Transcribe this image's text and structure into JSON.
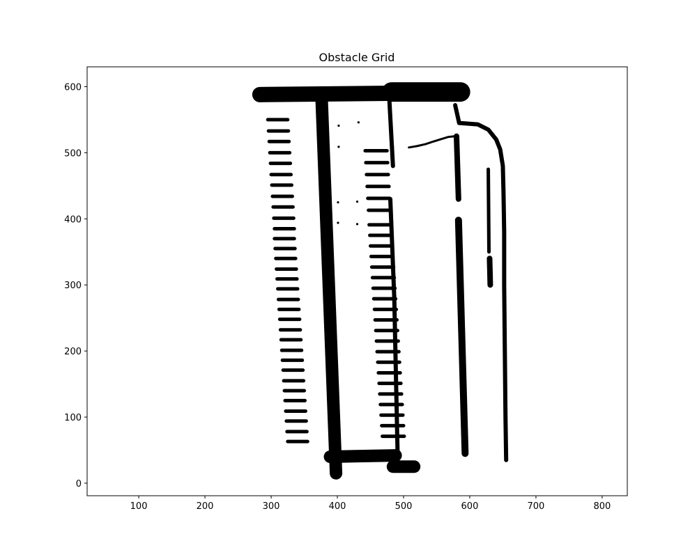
{
  "chart_data": {
    "type": "scatter",
    "title": "Obstacle Grid",
    "xlabel": "",
    "ylabel": "",
    "xlim": [
      22,
      838
    ],
    "ylim": [
      -19,
      630
    ],
    "x_ticks": [
      100,
      200,
      300,
      400,
      500,
      600,
      700,
      800
    ],
    "y_ticks": [
      0,
      100,
      200,
      300,
      400,
      500,
      600
    ],
    "x_tick_labels": [
      "100",
      "200",
      "300",
      "400",
      "500",
      "600",
      "700",
      "800"
    ],
    "y_tick_labels": [
      "0",
      "100",
      "200",
      "300",
      "400",
      "500",
      "600"
    ],
    "grid": false,
    "marker_color": "#000000",
    "series": [
      {
        "values": [
          {
            "kind": "line",
            "points": [
              [
                283,
                588
              ],
              [
                477,
                590
              ]
            ],
            "width": 22
          },
          {
            "kind": "line",
            "points": [
              [
                482,
                592
              ],
              [
                586,
                592
              ]
            ],
            "width": 28
          },
          {
            "kind": "line",
            "points": [
              [
                376,
                588
              ],
              [
                398,
                15
              ]
            ],
            "width": 18
          },
          {
            "kind": "line",
            "points": [
              [
                389,
                40
              ],
              [
                488,
                42
              ]
            ],
            "width": 18
          },
          {
            "kind": "line",
            "points": [
              [
                484,
                25
              ],
              [
                516,
                25
              ]
            ],
            "width": 18
          },
          {
            "kind": "line",
            "points": [
              [
                478,
                590
              ],
              [
                484,
                480
              ]
            ],
            "width": 6
          },
          {
            "kind": "line",
            "points": [
              [
                480,
                430
              ],
              [
                486,
                280
              ]
            ],
            "width": 6
          },
          {
            "kind": "line",
            "points": [
              [
                486,
                280
              ],
              [
                491,
                45
              ]
            ],
            "width": 6
          },
          {
            "kind": "line",
            "points": [
              [
                580,
                525
              ],
              [
                583,
                430
              ]
            ],
            "width": 8
          },
          {
            "kind": "line",
            "points": [
              [
                583,
                398
              ],
              [
                593,
                45
              ]
            ],
            "width": 10
          },
          {
            "kind": "line",
            "points": [
              [
                578,
                572
              ],
              [
                584,
                545
              ],
              [
                612,
                543
              ],
              [
                628,
                535
              ],
              [
                640,
                520
              ],
              [
                646,
                505
              ],
              [
                650,
                480
              ],
              [
                651,
                440
              ],
              [
                652,
                380
              ],
              [
                652,
                300
              ],
              [
                653,
                200
              ],
              [
                654,
                100
              ],
              [
                655,
                35
              ]
            ],
            "width": 6
          },
          {
            "kind": "line",
            "points": [
              [
                628,
                475
              ],
              [
                629,
                350
              ]
            ],
            "width": 5
          },
          {
            "kind": "line",
            "points": [
              [
                630,
                340
              ],
              [
                631,
                300
              ]
            ],
            "width": 8
          },
          {
            "kind": "line",
            "points": [
              [
                508,
                508
              ],
              [
                520,
                510
              ],
              [
                533,
                513
              ],
              [
                545,
                517
              ],
              [
                558,
                521
              ],
              [
                568,
                524
              ],
              [
                578,
                525
              ]
            ],
            "width": 3
          },
          {
            "kind": "line",
            "points": [
              [
                482,
                530
              ],
              [
                484,
                508
              ]
            ],
            "width": 3
          }
        ]
      },
      {
        "values": [
          [
            295,
            550
          ],
          [
            296,
            533
          ],
          [
            297,
            517
          ],
          [
            298,
            500
          ],
          [
            299,
            484
          ],
          [
            300,
            467
          ],
          [
            301,
            451
          ],
          [
            302,
            434
          ],
          [
            303,
            418
          ],
          [
            304,
            401
          ],
          [
            305,
            385
          ],
          [
            305,
            370
          ],
          [
            306,
            355
          ],
          [
            307,
            340
          ],
          [
            308,
            324
          ],
          [
            309,
            309
          ],
          [
            310,
            294
          ],
          [
            311,
            278
          ],
          [
            312,
            263
          ],
          [
            313,
            248
          ],
          [
            314,
            232
          ],
          [
            315,
            217
          ],
          [
            316,
            201
          ],
          [
            317,
            186
          ],
          [
            318,
            171
          ],
          [
            319,
            155
          ],
          [
            320,
            140
          ],
          [
            321,
            125
          ],
          [
            322,
            109
          ],
          [
            323,
            94
          ],
          [
            324,
            78
          ],
          [
            325,
            63
          ]
        ]
      },
      {
        "values": [
          [
            442,
            503
          ],
          [
            443,
            485
          ],
          [
            444,
            467
          ],
          [
            445,
            449
          ],
          [
            446,
            431
          ],
          [
            447,
            413
          ],
          [
            448,
            391
          ],
          [
            449,
            375
          ],
          [
            450,
            359
          ],
          [
            451,
            343
          ],
          [
            452,
            327
          ],
          [
            453,
            311
          ],
          [
            454,
            295
          ],
          [
            455,
            279
          ],
          [
            456,
            263
          ],
          [
            457,
            247
          ],
          [
            458,
            231
          ],
          [
            459,
            215
          ],
          [
            460,
            199
          ],
          [
            461,
            183
          ],
          [
            462,
            167
          ],
          [
            463,
            151
          ],
          [
            464,
            135
          ],
          [
            465,
            119
          ],
          [
            466,
            103
          ],
          [
            467,
            87
          ],
          [
            468,
            71
          ]
        ]
      },
      {
        "values": [
          [
            432,
            546
          ],
          [
            402,
            541
          ],
          [
            402,
            509
          ],
          [
            430,
            426
          ],
          [
            401,
            425
          ],
          [
            401,
            394
          ],
          [
            430,
            392
          ]
        ]
      }
    ]
  }
}
